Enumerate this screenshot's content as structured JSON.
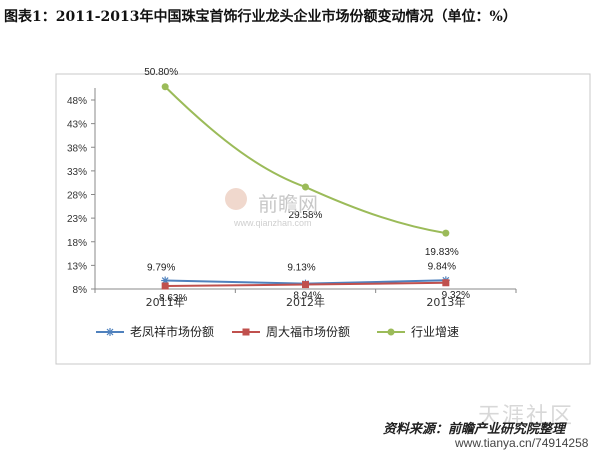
{
  "title": "图表1：2011-2013年中国珠宝首饰行业龙头企业市场份额变动情况（单位：%）",
  "watermark": {
    "brand": "前瞻网",
    "url": "www.qianzhan.com"
  },
  "footer": {
    "source": "资料来源：前瞻产业研究院整理",
    "site": "天涯社区",
    "url": "www.tianya.cn/74914258"
  },
  "chart_data": {
    "type": "line",
    "title": "",
    "xlabel": "",
    "ylabel": "",
    "categories": [
      "2011年",
      "2012年",
      "2013年"
    ],
    "yticks": [
      "8%",
      "13%",
      "18%",
      "23%",
      "28%",
      "33%",
      "38%",
      "43%",
      "48%"
    ],
    "ylim": [
      8,
      52
    ],
    "grid": false,
    "legend": "bottom",
    "series": [
      {
        "name": "老凤祥市场份额",
        "values": [
          9.79,
          9.13,
          9.84
        ],
        "labels": [
          "9.79%",
          "9.13%",
          "9.84%"
        ],
        "color": "#4f81bd",
        "marker": "star"
      },
      {
        "name": "周大福市场份额",
        "values": [
          8.63,
          8.94,
          9.32
        ],
        "labels": [
          "8.63%",
          "8.94%",
          "9.32%"
        ],
        "color": "#c0504d",
        "marker": "square"
      },
      {
        "name": "行业增速",
        "values": [
          50.8,
          29.58,
          19.83
        ],
        "labels": [
          "50.80%",
          "29.58%",
          "19.83%"
        ],
        "color": "#9bbb59",
        "marker": "circle"
      }
    ]
  }
}
